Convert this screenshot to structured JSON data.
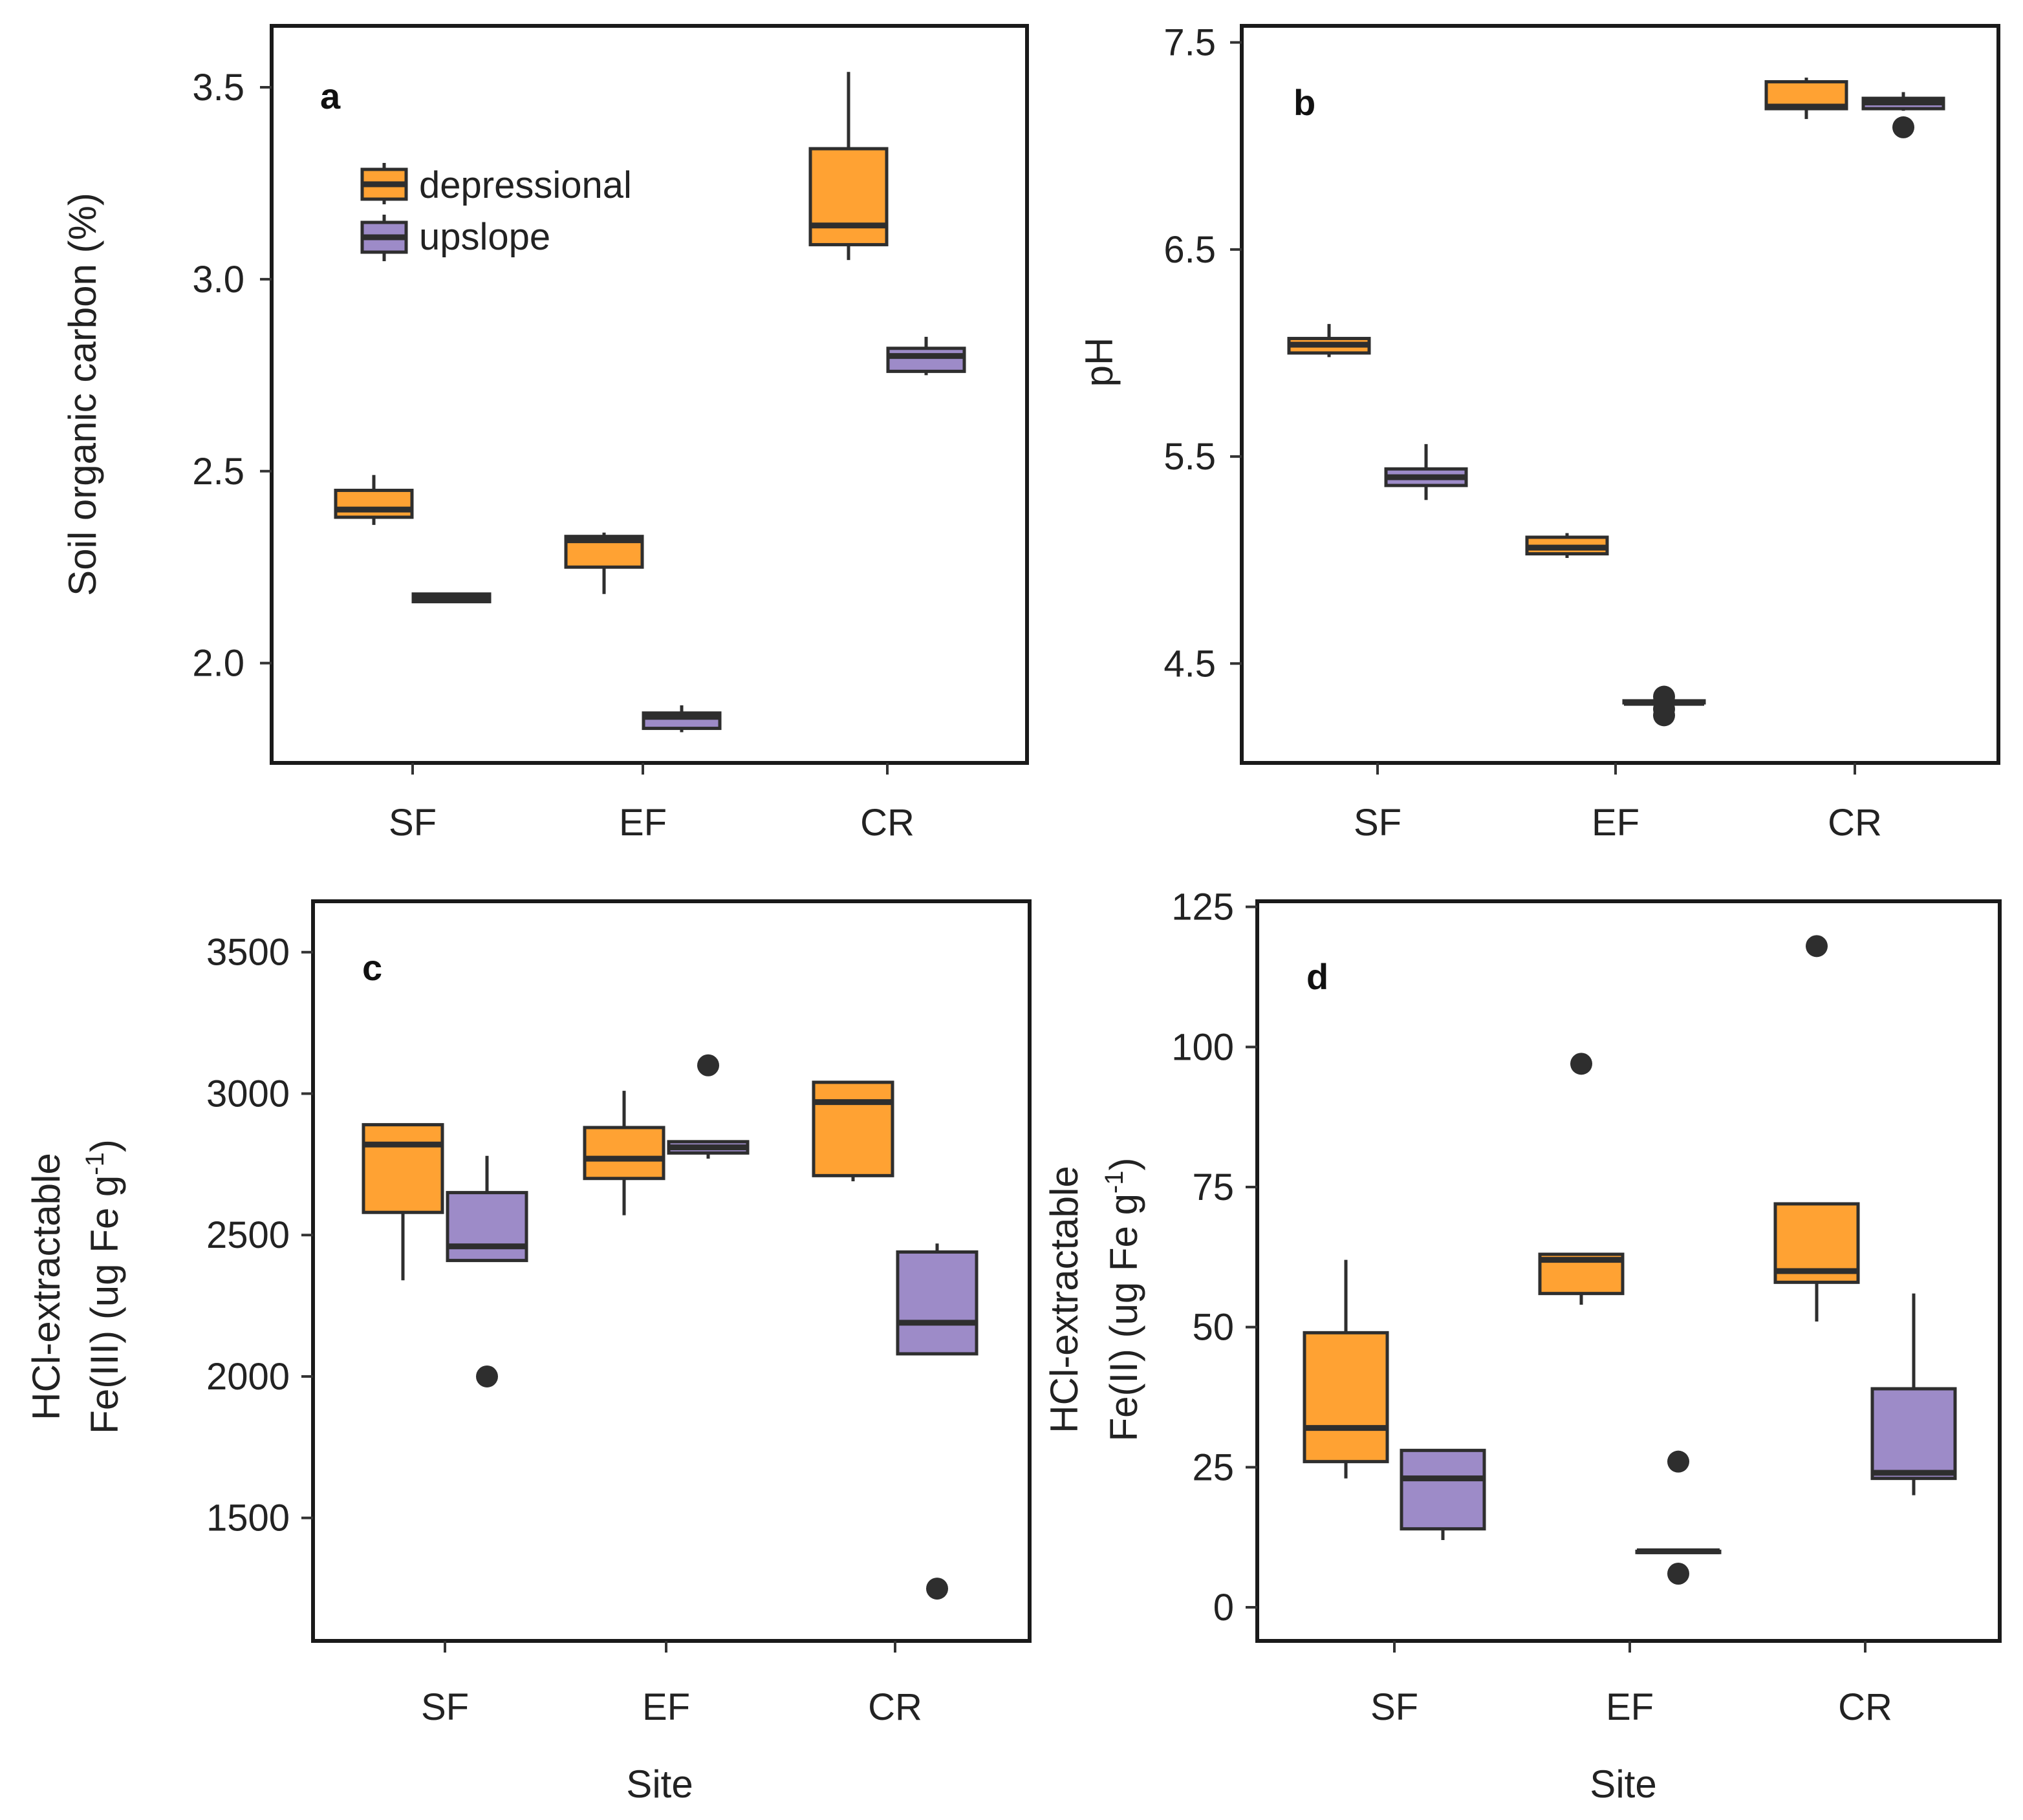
{
  "colors": {
    "depressional": "#FFA233",
    "upslope": "#9D8BC8"
  },
  "legend": {
    "items": [
      {
        "name": "depressional",
        "label": "depressional",
        "color": "#FFA233"
      },
      {
        "name": "upslope",
        "label": "upslope",
        "color": "#9D8BC8"
      }
    ]
  },
  "chart_data": [
    {
      "type": "boxplot",
      "panel": "a",
      "title": "",
      "xlabel": "",
      "ylabel": "Soil organic carbon (%)",
      "categories": [
        "SF",
        "EF",
        "CR"
      ],
      "ylim": [
        1.74,
        3.66
      ],
      "yticks": [
        2.0,
        2.5,
        3.0,
        3.5
      ],
      "ytick_labels": [
        "2.0",
        "2.5",
        "3.0",
        "3.5"
      ],
      "legend_position": "top-left",
      "series": [
        {
          "name": "depressional",
          "boxes": [
            {
              "category": "SF",
              "min": 2.36,
              "q1": 2.38,
              "median": 2.4,
              "q3": 2.45,
              "max": 2.49,
              "outliers": []
            },
            {
              "category": "EF",
              "min": 2.18,
              "q1": 2.25,
              "median": 2.32,
              "q3": 2.33,
              "max": 2.34,
              "outliers": []
            },
            {
              "category": "CR",
              "min": 3.05,
              "q1": 3.09,
              "median": 3.14,
              "q3": 3.34,
              "max": 3.54,
              "outliers": []
            }
          ]
        },
        {
          "name": "upslope",
          "boxes": [
            {
              "category": "SF",
              "min": 2.16,
              "q1": 2.16,
              "median": 2.17,
              "q3": 2.18,
              "max": 2.18,
              "outliers": []
            },
            {
              "category": "EF",
              "min": 1.82,
              "q1": 1.83,
              "median": 1.86,
              "q3": 1.87,
              "max": 1.89,
              "outliers": []
            },
            {
              "category": "CR",
              "min": 2.75,
              "q1": 2.76,
              "median": 2.8,
              "q3": 2.82,
              "max": 2.85,
              "outliers": []
            }
          ]
        }
      ]
    },
    {
      "type": "boxplot",
      "panel": "b",
      "title": "",
      "xlabel": "",
      "ylabel": "pH",
      "categories": [
        "SF",
        "EF",
        "CR"
      ],
      "ylim": [
        4.02,
        7.58
      ],
      "yticks": [
        4.5,
        5.5,
        6.5,
        7.5
      ],
      "ytick_labels": [
        "4.5",
        "5.5",
        "6.5",
        "7.5"
      ],
      "series": [
        {
          "name": "depressional",
          "boxes": [
            {
              "category": "SF",
              "min": 5.98,
              "q1": 6.0,
              "median": 6.04,
              "q3": 6.07,
              "max": 6.14,
              "outliers": []
            },
            {
              "category": "EF",
              "min": 5.01,
              "q1": 5.03,
              "median": 5.06,
              "q3": 5.11,
              "max": 5.13,
              "outliers": []
            },
            {
              "category": "CR",
              "min": 7.13,
              "q1": 7.18,
              "median": 7.19,
              "q3": 7.31,
              "max": 7.33,
              "outliers": []
            }
          ]
        },
        {
          "name": "upslope",
          "boxes": [
            {
              "category": "SF",
              "min": 5.29,
              "q1": 5.36,
              "median": 5.4,
              "q3": 5.44,
              "max": 5.56,
              "outliers": []
            },
            {
              "category": "EF",
              "min": 4.31,
              "q1": 4.31,
              "median": 4.31,
              "q3": 4.32,
              "max": 4.32,
              "outliers": [
                4.25,
                4.28,
                4.34
              ]
            },
            {
              "category": "CR",
              "min": 7.17,
              "q1": 7.18,
              "median": 7.21,
              "q3": 7.23,
              "max": 7.26,
              "outliers": [
                7.09
              ]
            }
          ]
        }
      ]
    },
    {
      "type": "boxplot",
      "panel": "c",
      "title": "",
      "xlabel": "Site",
      "ylabel_line1": "HCl-extractable",
      "ylabel_line2_prefix": "Fe(III) (ug Fe g",
      "ylabel_exponent": "-1",
      "ylabel_line2_suffix": ")",
      "categories": [
        "SF",
        "EF",
        "CR"
      ],
      "ylim": [
        1065,
        3680
      ],
      "yticks": [
        1500,
        2000,
        2500,
        3000,
        3500
      ],
      "ytick_labels": [
        "1500",
        "2000",
        "2500",
        "3000",
        "3500"
      ],
      "series": [
        {
          "name": "depressional",
          "boxes": [
            {
              "category": "SF",
              "min": 2340,
              "q1": 2580,
              "median": 2820,
              "q3": 2890,
              "max": 2890,
              "outliers": []
            },
            {
              "category": "EF",
              "min": 2570,
              "q1": 2700,
              "median": 2770,
              "q3": 2880,
              "max": 3010,
              "outliers": []
            },
            {
              "category": "CR",
              "min": 2690,
              "q1": 2710,
              "median": 2970,
              "q3": 3040,
              "max": 3040,
              "outliers": []
            }
          ]
        },
        {
          "name": "upslope",
          "boxes": [
            {
              "category": "SF",
              "min": 2410,
              "q1": 2410,
              "median": 2460,
              "q3": 2650,
              "max": 2780,
              "outliers": [
                2000
              ]
            },
            {
              "category": "EF",
              "min": 2770,
              "q1": 2790,
              "median": 2810,
              "q3": 2830,
              "max": 2830,
              "outliers": [
                3100
              ]
            },
            {
              "category": "CR",
              "min": 2080,
              "q1": 2080,
              "median": 2190,
              "q3": 2440,
              "max": 2470,
              "outliers": [
                1250
              ]
            }
          ]
        }
      ]
    },
    {
      "type": "boxplot",
      "panel": "d",
      "title": "",
      "xlabel": "Site",
      "ylabel_line1": "HCl-extractable",
      "ylabel_line2_prefix": "Fe(II) (ug Fe g",
      "ylabel_exponent": "-1",
      "ylabel_line2_suffix": ")",
      "categories": [
        "SF",
        "EF",
        "CR"
      ],
      "ylim": [
        -6,
        126
      ],
      "yticks": [
        0,
        25,
        50,
        75,
        100,
        125
      ],
      "ytick_labels": [
        "0",
        "25",
        "50",
        "75",
        "100",
        "125"
      ],
      "series": [
        {
          "name": "depressional",
          "boxes": [
            {
              "category": "SF",
              "min": 23,
              "q1": 26,
              "median": 32,
              "q3": 49,
              "max": 62,
              "outliers": []
            },
            {
              "category": "EF",
              "min": 54,
              "q1": 56,
              "median": 62,
              "q3": 63,
              "max": 63,
              "outliers": [
                97
              ]
            },
            {
              "category": "CR",
              "min": 51,
              "q1": 58,
              "median": 60,
              "q3": 72,
              "max": 72,
              "outliers": [
                118
              ]
            }
          ]
        },
        {
          "name": "upslope",
          "boxes": [
            {
              "category": "SF",
              "min": 12,
              "q1": 14,
              "median": 23,
              "q3": 28,
              "max": 28,
              "outliers": []
            },
            {
              "category": "EF",
              "min": 10,
              "q1": 10,
              "median": 10,
              "q3": 10,
              "max": 10,
              "outliers": [
                6,
                26
              ]
            },
            {
              "category": "CR",
              "min": 20,
              "q1": 23,
              "median": 24,
              "q3": 39,
              "max": 56,
              "outliers": []
            }
          ]
        }
      ]
    }
  ]
}
